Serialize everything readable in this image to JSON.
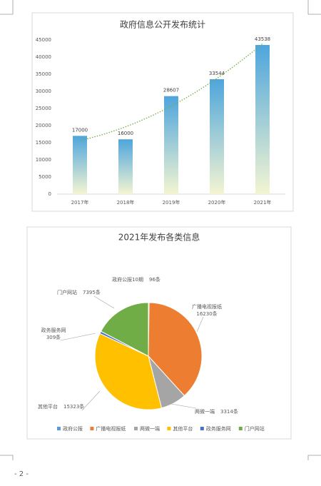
{
  "page_number": "- 2 -",
  "chart_data": [
    {
      "type": "bar",
      "title": "政府信息公开发布统计",
      "categories": [
        "2017年",
        "2018年",
        "2019年",
        "2020年",
        "2021年"
      ],
      "values": [
        17000,
        16000,
        28607,
        33544,
        43538
      ],
      "ylim": [
        0,
        45000
      ],
      "yticks": [
        0,
        5000,
        10000,
        15000,
        20000,
        25000,
        30000,
        35000,
        40000,
        45000
      ],
      "color": "#4ea5dc",
      "trendline": "polynomial",
      "trendline_color": "#70ad47",
      "grid": false
    },
    {
      "type": "pie",
      "title": "2021年发布各类信息",
      "categories": [
        "政府公报",
        "广播电视报纸",
        "两微一端",
        "其他平台",
        "政务服务网",
        "门户网站"
      ],
      "values": [
        96,
        16230,
        3314,
        15323,
        309,
        7395
      ],
      "label_names": [
        "政府公报10期",
        "广播电视报纸",
        "两微一端",
        "其他平台",
        "政务服务网",
        "门户网站"
      ],
      "value_labels": [
        "96条",
        "16230条",
        "3314条",
        "15323条",
        "309条",
        "7395条"
      ],
      "colors": [
        "#5b9bd5",
        "#ed7d31",
        "#a5a5a5",
        "#ffc000",
        "#4472c4",
        "#70ad47"
      ],
      "legend": "bottom"
    }
  ]
}
